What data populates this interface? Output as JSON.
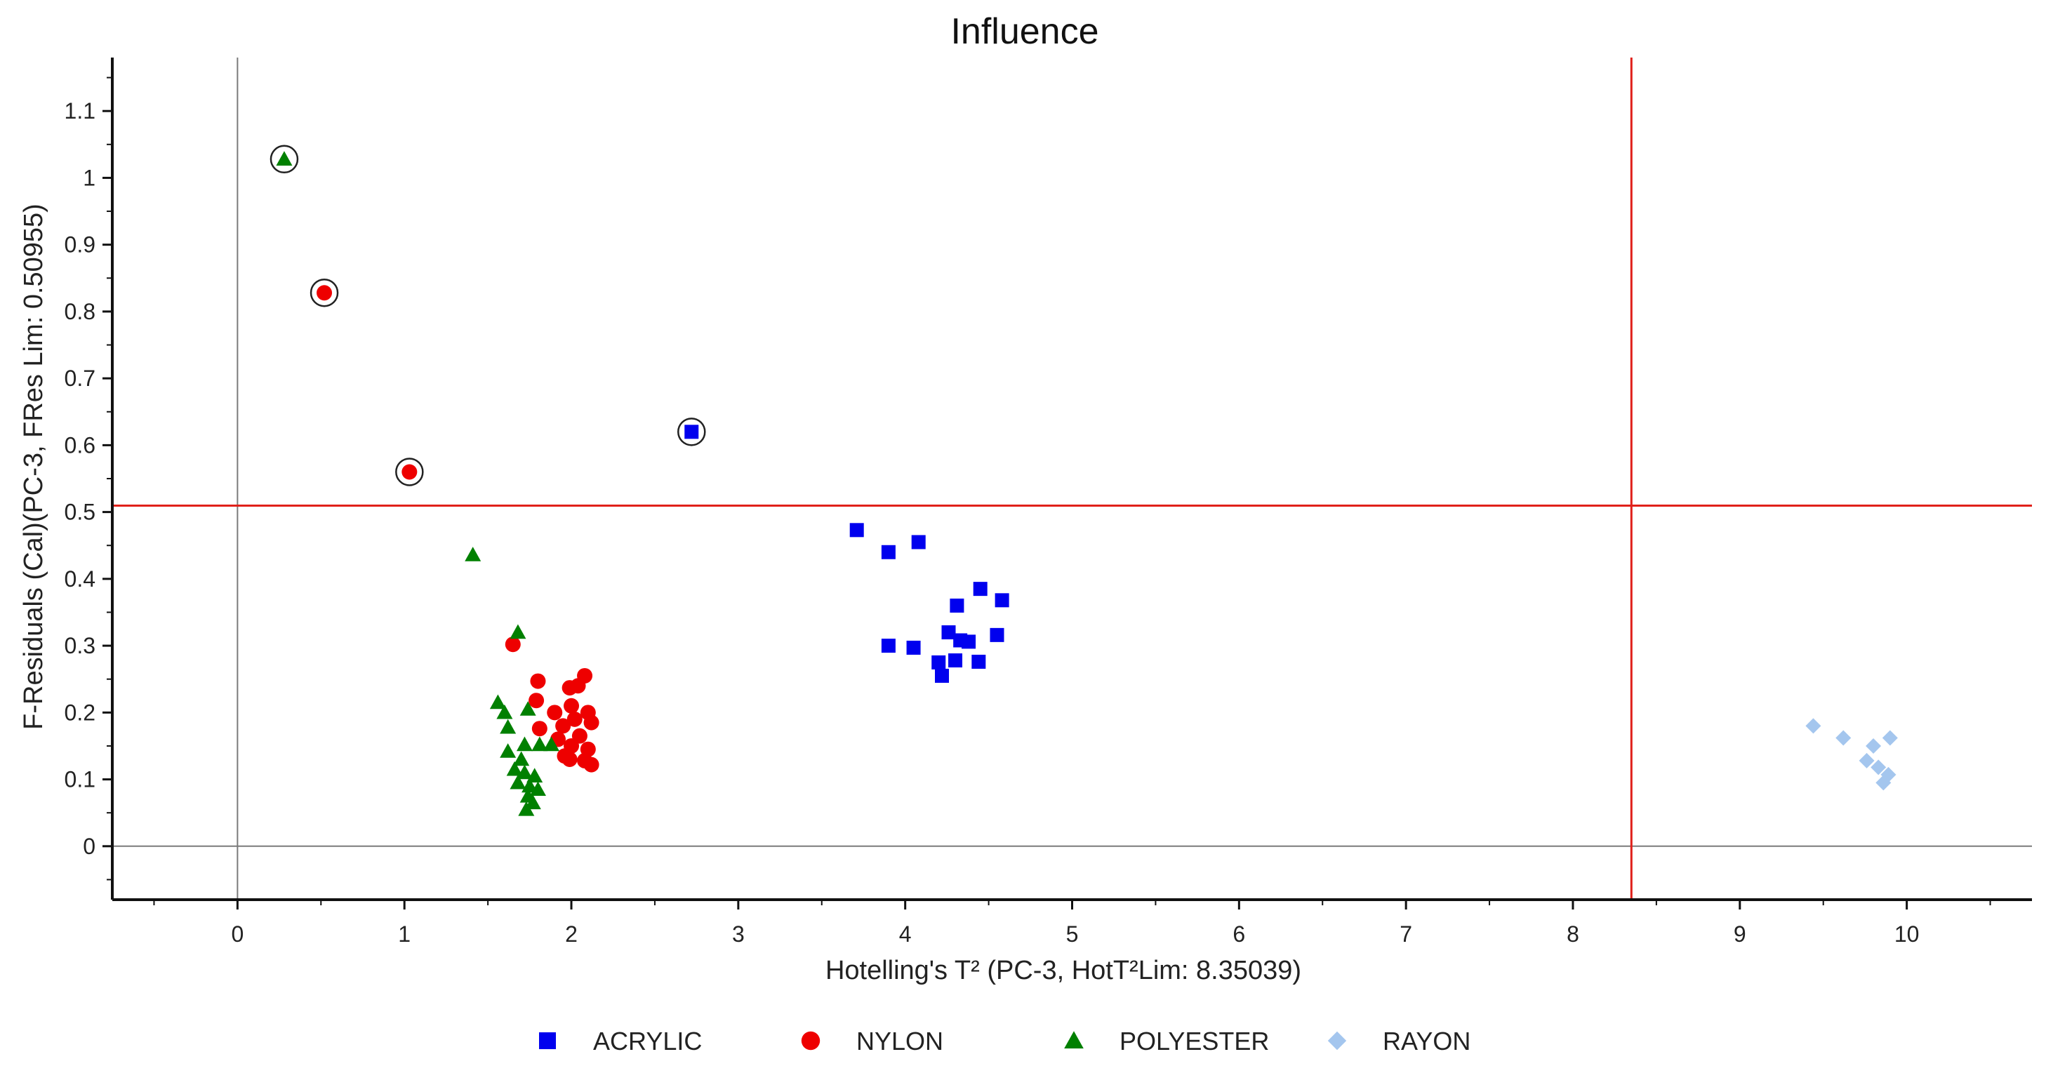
{
  "chart_data": {
    "type": "scatter",
    "title": "Influence",
    "xlabel": "Hotelling's T² (PC-3, HotT²Lim: 8.35039)",
    "ylabel": "F-Residuals (Cal)(PC-3, FRes Lim: 0.50955)",
    "xlim": [
      -0.75,
      10.75
    ],
    "ylim": [
      -0.08,
      1.18
    ],
    "x_ticks": [
      0,
      1,
      2,
      3,
      4,
      5,
      6,
      7,
      8,
      9,
      10
    ],
    "y_ticks": [
      0,
      0.1,
      0.2,
      0.3,
      0.4,
      0.5,
      0.6,
      0.7,
      0.8,
      0.9,
      1,
      1.1
    ],
    "x_tick_labels": [
      "0",
      "1",
      "2",
      "3",
      "4",
      "5",
      "6",
      "7",
      "8",
      "9",
      "10"
    ],
    "y_tick_labels": [
      "0",
      "0.1",
      "0.2",
      "0.3",
      "0.4",
      "0.5",
      "0.6",
      "0.7",
      "0.8",
      "0.9",
      "1",
      "1.1"
    ],
    "limits": {
      "hotelling_t2": 8.35039,
      "f_residual": 0.50955
    },
    "grid": false,
    "legend": "bottom",
    "series": [
      {
        "name": "ACRYLIC",
        "marker": "square",
        "color": "#0000ee",
        "points": [
          [
            2.72,
            0.62
          ],
          [
            3.71,
            0.473
          ],
          [
            3.9,
            0.44
          ],
          [
            4.08,
            0.455
          ],
          [
            4.45,
            0.385
          ],
          [
            4.58,
            0.368
          ],
          [
            4.31,
            0.36
          ],
          [
            4.55,
            0.316
          ],
          [
            4.26,
            0.32
          ],
          [
            4.33,
            0.308
          ],
          [
            4.38,
            0.306
          ],
          [
            3.9,
            0.3
          ],
          [
            4.05,
            0.297
          ],
          [
            4.2,
            0.275
          ],
          [
            4.3,
            0.278
          ],
          [
            4.44,
            0.276
          ],
          [
            4.22,
            0.255
          ]
        ],
        "highlighted": [
          [
            2.72,
            0.62
          ]
        ]
      },
      {
        "name": "NYLON",
        "marker": "circle",
        "color": "#ee0000",
        "points": [
          [
            0.52,
            0.828
          ],
          [
            1.03,
            0.56
          ],
          [
            1.65,
            0.302
          ],
          [
            1.8,
            0.247
          ],
          [
            2.08,
            0.255
          ],
          [
            1.99,
            0.237
          ],
          [
            2.04,
            0.24
          ],
          [
            1.79,
            0.218
          ],
          [
            1.9,
            0.2
          ],
          [
            2.0,
            0.21
          ],
          [
            2.1,
            0.2
          ],
          [
            2.12,
            0.185
          ],
          [
            1.95,
            0.18
          ],
          [
            2.02,
            0.19
          ],
          [
            1.81,
            0.176
          ],
          [
            1.92,
            0.16
          ],
          [
            2.05,
            0.165
          ],
          [
            2.0,
            0.15
          ],
          [
            2.1,
            0.145
          ],
          [
            1.96,
            0.135
          ],
          [
            2.08,
            0.128
          ],
          [
            2.12,
            0.122
          ],
          [
            1.99,
            0.13
          ]
        ],
        "highlighted": [
          [
            0.52,
            0.828
          ],
          [
            1.03,
            0.56
          ]
        ]
      },
      {
        "name": "POLYESTER",
        "marker": "triangle",
        "color": "#008000",
        "points": [
          [
            0.28,
            1.028
          ],
          [
            1.41,
            0.436
          ],
          [
            1.68,
            0.32
          ],
          [
            1.56,
            0.215
          ],
          [
            1.6,
            0.2
          ],
          [
            1.62,
            0.178
          ],
          [
            1.74,
            0.205
          ],
          [
            1.81,
            0.152
          ],
          [
            1.88,
            0.152
          ],
          [
            1.72,
            0.152
          ],
          [
            1.62,
            0.142
          ],
          [
            1.7,
            0.13
          ],
          [
            1.66,
            0.115
          ],
          [
            1.72,
            0.11
          ],
          [
            1.78,
            0.105
          ],
          [
            1.68,
            0.095
          ],
          [
            1.75,
            0.09
          ],
          [
            1.8,
            0.085
          ],
          [
            1.74,
            0.075
          ],
          [
            1.77,
            0.065
          ],
          [
            1.73,
            0.055
          ]
        ],
        "highlighted": [
          [
            0.28,
            1.028
          ]
        ]
      },
      {
        "name": "RAYON",
        "marker": "diamond",
        "color": "#a4c6ee",
        "points": [
          [
            9.44,
            0.18
          ],
          [
            9.62,
            0.162
          ],
          [
            9.9,
            0.162
          ],
          [
            9.8,
            0.15
          ],
          [
            9.76,
            0.128
          ],
          [
            9.83,
            0.118
          ],
          [
            9.89,
            0.107
          ],
          [
            9.86,
            0.095
          ]
        ],
        "highlighted": []
      }
    ]
  }
}
